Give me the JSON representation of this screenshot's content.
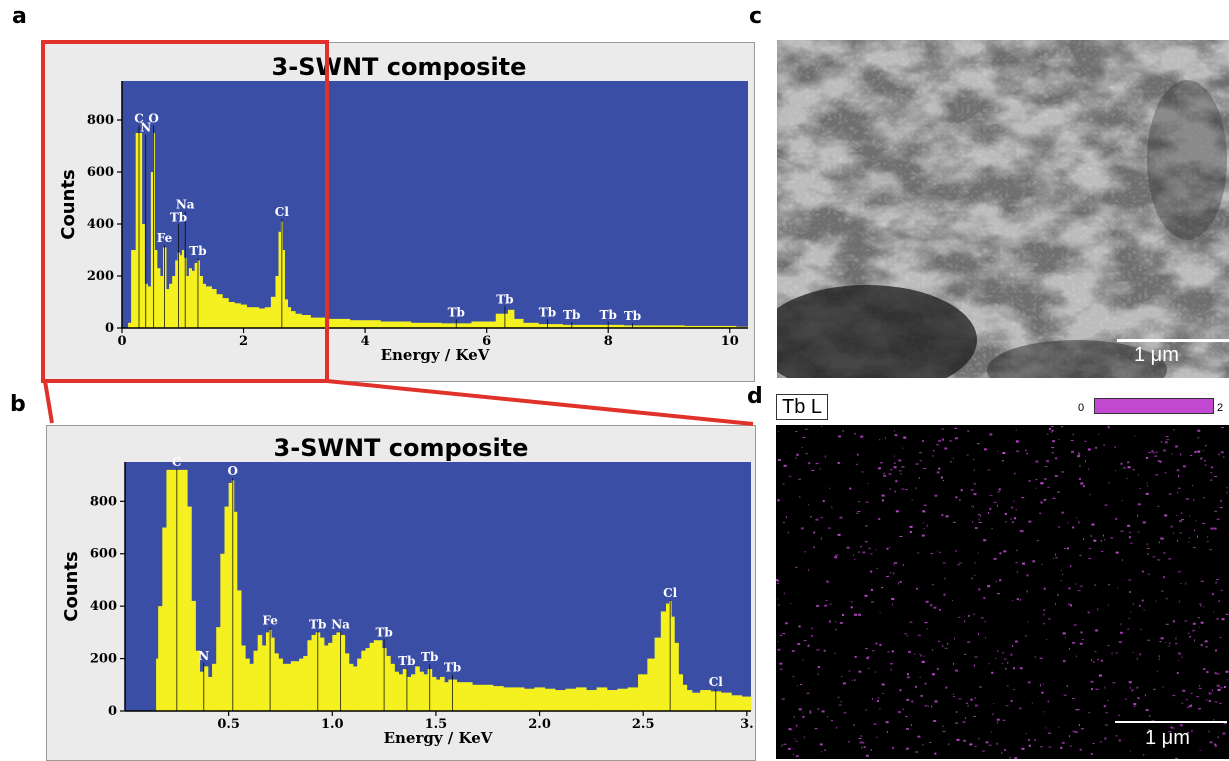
{
  "panels": {
    "a": "a",
    "b": "b",
    "c": "c",
    "d": "d"
  },
  "colors": {
    "plot_bg": "#3b4ea6",
    "bars": "#f5f020",
    "highlight": "#e0322a",
    "map_dots": "#c24ad3",
    "panel_bg": "#ebebeb"
  },
  "chart_data": [
    {
      "type": "bar",
      "panel": "a",
      "title": "3-SWNT composite",
      "xlabel": "Energy / KeV",
      "ylabel": "Counts",
      "xlim": [
        0,
        10.3
      ],
      "ylim": [
        0,
        950
      ],
      "xticks": [
        0,
        2,
        4,
        6,
        8,
        10
      ],
      "xtick_labels": [
        "0",
        "2",
        "4",
        "6",
        "8",
        "10"
      ],
      "yticks": [
        0,
        200,
        400,
        600,
        800
      ],
      "ytick_labels": [
        "0",
        "200",
        "400",
        "600",
        "800"
      ],
      "series": [
        {
          "x": [
            0.1,
            0.2,
            0.25,
            0.28,
            0.3,
            0.35,
            0.39,
            0.45,
            0.5,
            0.52,
            0.55,
            0.6,
            0.65,
            0.7,
            0.75,
            0.8,
            0.85,
            0.9,
            0.93,
            0.97,
            1.0,
            1.03,
            1.08,
            1.12,
            1.17,
            1.22,
            1.25,
            1.3,
            1.35,
            1.4,
            1.45,
            1.5,
            1.6,
            1.7,
            1.8,
            1.9,
            2.0,
            2.1,
            2.2,
            2.3,
            2.4,
            2.5,
            2.55,
            2.6,
            2.63,
            2.65,
            2.7,
            2.75,
            2.8,
            2.9,
            3.0,
            3.2,
            3.5,
            4.0,
            4.5,
            5.0,
            5.5,
            6.0,
            6.3,
            6.4,
            6.5,
            6.7,
            7.0,
            7.5,
            8.0,
            8.5,
            9.0,
            9.5,
            10.0,
            10.2
          ],
          "values": [
            20,
            300,
            750,
            750,
            750,
            400,
            170,
            160,
            600,
            750,
            300,
            230,
            200,
            310,
            150,
            170,
            200,
            260,
            290,
            280,
            300,
            270,
            200,
            230,
            220,
            250,
            260,
            200,
            170,
            160,
            160,
            150,
            130,
            115,
            100,
            95,
            90,
            80,
            80,
            75,
            80,
            120,
            200,
            370,
            410,
            300,
            110,
            80,
            65,
            55,
            50,
            40,
            35,
            30,
            25,
            20,
            18,
            25,
            55,
            70,
            35,
            20,
            15,
            12,
            12,
            10,
            10,
            8,
            8,
            5
          ]
        }
      ],
      "annotations": [
        {
          "x": 0.28,
          "y": 790,
          "text": "C"
        },
        {
          "x": 0.52,
          "y": 790,
          "text": "O"
        },
        {
          "x": 0.39,
          "y": 755,
          "text": "N"
        },
        {
          "x": 1.04,
          "y": 460,
          "text": "Na"
        },
        {
          "x": 0.93,
          "y": 410,
          "text": "Tb"
        },
        {
          "x": 0.7,
          "y": 330,
          "text": "Fe"
        },
        {
          "x": 1.25,
          "y": 280,
          "text": "Tb"
        },
        {
          "x": 2.63,
          "y": 430,
          "text": "Cl"
        },
        {
          "x": 5.5,
          "y": 45,
          "text": "Tb"
        },
        {
          "x": 6.3,
          "y": 95,
          "text": "Tb"
        },
        {
          "x": 7.0,
          "y": 45,
          "text": "Tb"
        },
        {
          "x": 7.4,
          "y": 35,
          "text": "Tb"
        },
        {
          "x": 8.0,
          "y": 35,
          "text": "Tb"
        },
        {
          "x": 8.4,
          "y": 30,
          "text": "Tb"
        }
      ]
    },
    {
      "type": "bar",
      "panel": "b",
      "title": "3-SWNT composite",
      "xlabel": "Energy / KeV",
      "ylabel": "Counts",
      "xlim": [
        0,
        3.02
      ],
      "ylim": [
        0,
        950
      ],
      "xticks": [
        0.5,
        1.0,
        1.5,
        2.0,
        2.5,
        3.0
      ],
      "xtick_labels": [
        "0.5",
        "1.0",
        "1.5",
        "2.0",
        "2.5",
        "3."
      ],
      "yticks": [
        0,
        200,
        400,
        600,
        800
      ],
      "ytick_labels": [
        "0",
        "200",
        "400",
        "600",
        "800"
      ],
      "series": [
        {
          "x": [
            0.15,
            0.17,
            0.19,
            0.21,
            0.23,
            0.25,
            0.27,
            0.29,
            0.31,
            0.33,
            0.35,
            0.37,
            0.39,
            0.41,
            0.43,
            0.45,
            0.47,
            0.49,
            0.51,
            0.52,
            0.53,
            0.55,
            0.57,
            0.59,
            0.61,
            0.63,
            0.65,
            0.67,
            0.69,
            0.7,
            0.71,
            0.73,
            0.75,
            0.77,
            0.79,
            0.81,
            0.83,
            0.85,
            0.87,
            0.89,
            0.91,
            0.93,
            0.95,
            0.97,
            0.99,
            1.01,
            1.03,
            1.05,
            1.07,
            1.09,
            1.11,
            1.13,
            1.15,
            1.17,
            1.19,
            1.21,
            1.23,
            1.25,
            1.27,
            1.29,
            1.31,
            1.33,
            1.35,
            1.37,
            1.39,
            1.41,
            1.43,
            1.45,
            1.47,
            1.49,
            1.51,
            1.53,
            1.55,
            1.57,
            1.59,
            1.61,
            1.65,
            1.7,
            1.75,
            1.8,
            1.85,
            1.9,
            1.95,
            2.0,
            2.05,
            2.1,
            2.15,
            2.2,
            2.25,
            2.3,
            2.35,
            2.4,
            2.45,
            2.5,
            2.54,
            2.57,
            2.6,
            2.62,
            2.63,
            2.64,
            2.66,
            2.68,
            2.7,
            2.72,
            2.75,
            2.8,
            2.85,
            2.9,
            2.95,
            3.0
          ],
          "values": [
            200,
            400,
            700,
            920,
            920,
            920,
            920,
            920,
            780,
            420,
            230,
            150,
            170,
            130,
            180,
            320,
            600,
            780,
            870,
            880,
            760,
            460,
            250,
            200,
            180,
            230,
            290,
            250,
            300,
            310,
            280,
            220,
            200,
            180,
            180,
            190,
            190,
            200,
            210,
            270,
            290,
            300,
            280,
            250,
            260,
            290,
            300,
            290,
            220,
            180,
            170,
            200,
            230,
            240,
            260,
            270,
            270,
            240,
            210,
            180,
            150,
            140,
            160,
            130,
            140,
            170,
            150,
            140,
            160,
            130,
            120,
            130,
            110,
            120,
            120,
            110,
            110,
            100,
            100,
            95,
            90,
            90,
            85,
            90,
            85,
            80,
            85,
            90,
            80,
            90,
            80,
            85,
            90,
            140,
            200,
            280,
            380,
            410,
            420,
            360,
            260,
            140,
            100,
            80,
            70,
            80,
            75,
            70,
            60,
            55
          ]
        }
      ],
      "annotations": [
        {
          "x": 0.25,
          "y": 935,
          "text": "C"
        },
        {
          "x": 0.52,
          "y": 900,
          "text": "O"
        },
        {
          "x": 0.38,
          "y": 195,
          "text": "N"
        },
        {
          "x": 0.7,
          "y": 330,
          "text": "Fe"
        },
        {
          "x": 0.93,
          "y": 315,
          "text": "Tb"
        },
        {
          "x": 1.04,
          "y": 315,
          "text": "Na"
        },
        {
          "x": 1.25,
          "y": 285,
          "text": "Tb"
        },
        {
          "x": 1.36,
          "y": 175,
          "text": "Tb"
        },
        {
          "x": 1.47,
          "y": 190,
          "text": "Tb"
        },
        {
          "x": 1.58,
          "y": 150,
          "text": "Tb"
        },
        {
          "x": 2.63,
          "y": 435,
          "text": "Cl"
        },
        {
          "x": 2.85,
          "y": 95,
          "text": "Cl"
        }
      ]
    }
  ],
  "sem_image": {
    "scale_label": "1 μm",
    "corner_text": ". ."
  },
  "eds_map": {
    "element_label": "Tb L",
    "legend_min": "0",
    "legend_max": "2",
    "scale_label": "1 μm"
  }
}
